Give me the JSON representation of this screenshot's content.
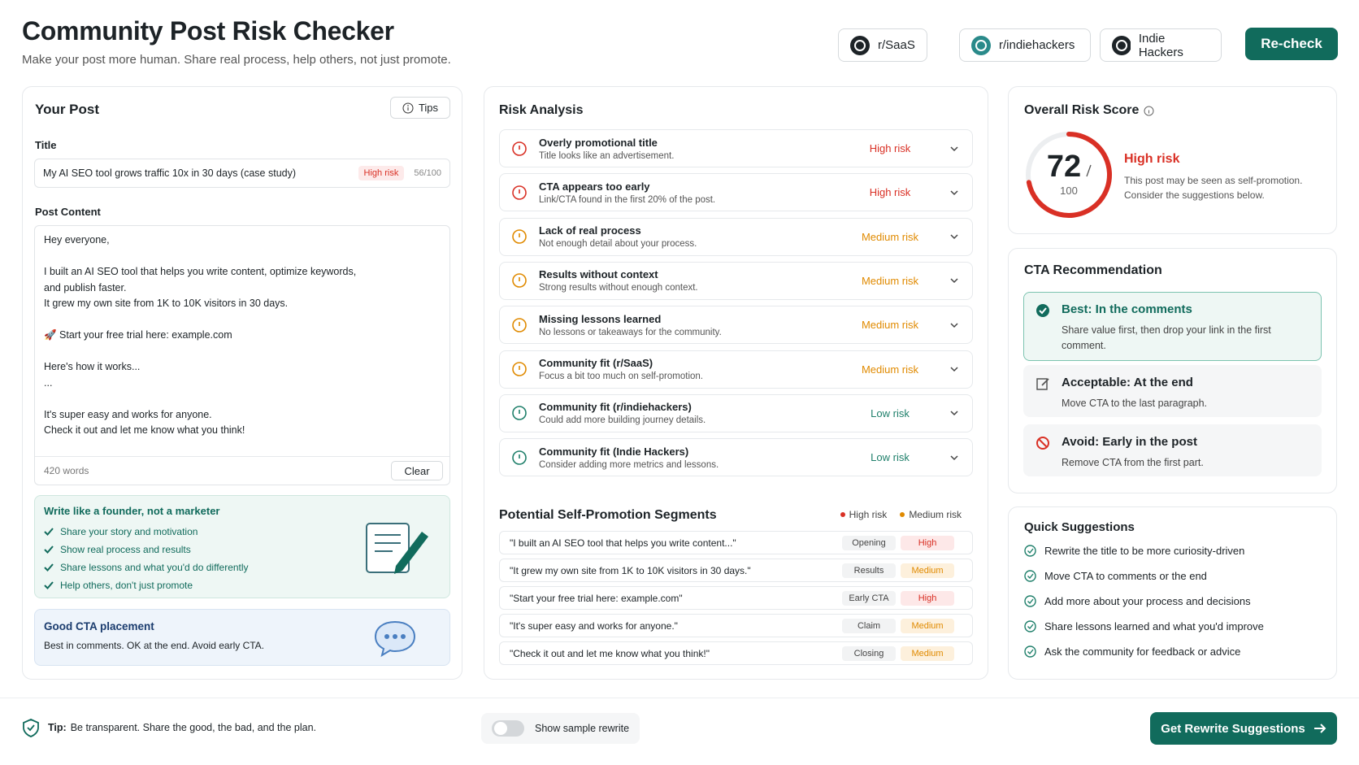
{
  "header": {
    "title": "Community Post Risk Checker",
    "subtitle": "Make your post more human. Share real process, help others, not just promote.",
    "communities": [
      "r/SaaS",
      "r/indiehackers",
      "Indie Hackers"
    ],
    "recheck": "Re-check"
  },
  "post": {
    "heading": "Your Post",
    "tips": "Tips",
    "title_label": "Title",
    "title_value": "My AI SEO tool grows traffic 10x in 30 days (case study)",
    "title_risk": "High risk",
    "title_score": "56/100",
    "content_label": "Post Content",
    "paragraphs": [
      [
        "Hey everyone,"
      ],
      [
        "I built an AI SEO tool that helps you write content, optimize keywords,",
        "and publish faster.",
        "It grew my own site from 1K to 10K visitors in 30 days."
      ],
      [
        "🚀 Start your free trial here: example.com"
      ],
      [
        "Here's how it works...",
        "..."
      ],
      [
        "It's super easy and works for anyone.",
        "Check it out and let me know what you think!"
      ]
    ],
    "word_count": "420 words",
    "clear": "Clear"
  },
  "founder_tips": {
    "heading": "Write like a founder, not a marketer",
    "items": [
      "Share your story and motivation",
      "Show real process and results",
      "Share lessons and what you'd do differently",
      "Help others, don't just promote"
    ]
  },
  "cta_placement": {
    "heading": "Good CTA placement",
    "text": "Best in comments. OK at the end. Avoid early CTA."
  },
  "risk_analysis": {
    "heading": "Risk Analysis",
    "items": [
      {
        "title": "Overly promotional title",
        "desc": "Title looks like an advertisement.",
        "risk": "High risk",
        "color": "#d93025"
      },
      {
        "title": "CTA appears too early",
        "desc": "Link/CTA found in the first 20% of the post.",
        "risk": "High risk",
        "color": "#d93025"
      },
      {
        "title": "Lack of real process",
        "desc": "Not enough detail about your process.",
        "risk": "Medium risk",
        "color": "#e08a00"
      },
      {
        "title": "Results without context",
        "desc": "Strong results without enough context.",
        "risk": "Medium risk",
        "color": "#e08a00"
      },
      {
        "title": "Missing lessons learned",
        "desc": "No lessons or takeaways for the community.",
        "risk": "Medium risk",
        "color": "#e08a00"
      },
      {
        "title": "Community fit (r/SaaS)",
        "desc": "Focus a bit too much on self-promotion.",
        "risk": "Medium risk",
        "color": "#e08a00"
      },
      {
        "title": "Community fit (r/indiehackers)",
        "desc": "Could add more building journey details.",
        "risk": "Low risk",
        "color": "#1e7f6a"
      },
      {
        "title": "Community fit (Indie Hackers)",
        "desc": "Consider adding more metrics and lessons.",
        "risk": "Low risk",
        "color": "#1e7f6a"
      }
    ]
  },
  "segments": {
    "heading": "Potential Self-Promotion Segments",
    "legend": [
      {
        "label": "High risk",
        "color": "#d93025"
      },
      {
        "label": "Medium risk",
        "color": "#e08a00"
      }
    ],
    "rows": [
      {
        "quote": "\"I built an AI SEO tool that helps you write content...\"",
        "tag": "Opening",
        "risk": "High",
        "color": "#d93025"
      },
      {
        "quote": "\"It grew my own site from 1K to 10K visitors in 30 days.\"",
        "tag": "Results",
        "risk": "Medium",
        "color": "#e08a00"
      },
      {
        "quote": "\"Start your free trial here: example.com\"",
        "tag": "Early CTA",
        "risk": "High",
        "color": "#d93025"
      },
      {
        "quote": "\"It's super easy and works for anyone.\"",
        "tag": "Claim",
        "risk": "Medium",
        "color": "#e08a00"
      },
      {
        "quote": "\"Check it out and let me know what you think!\"",
        "tag": "Closing",
        "risk": "Medium",
        "color": "#e08a00"
      }
    ]
  },
  "score": {
    "heading": "Overall Risk Score",
    "value": 72,
    "max": 100,
    "risk": "High risk",
    "text": "This post may be seen as self-promotion. Consider the suggestions below.",
    "color": "#d93025"
  },
  "cta_rec": {
    "heading": "CTA Recommendation",
    "options": [
      {
        "title": "Best: In the comments",
        "text": "Share value first, then drop your link in the first comment."
      },
      {
        "title": "Acceptable: At the end",
        "text": "Move CTA to the last paragraph."
      },
      {
        "title": "Avoid: Early in the post",
        "text": "Remove CTA from the first part."
      }
    ]
  },
  "quick": {
    "heading": "Quick Suggestions",
    "items": [
      "Rewrite the title to be more curiosity-driven",
      "Move CTA to comments or the end",
      "Add more about your process and decisions",
      "Share lessons learned and what you'd improve",
      "Ask the community for feedback or advice"
    ]
  },
  "footer": {
    "tip_label": "Tip:",
    "tip": "Be transparent. Share the good, the bad, and the plan.",
    "toggle": "Show sample rewrite",
    "button": "Get Rewrite Suggestions"
  }
}
